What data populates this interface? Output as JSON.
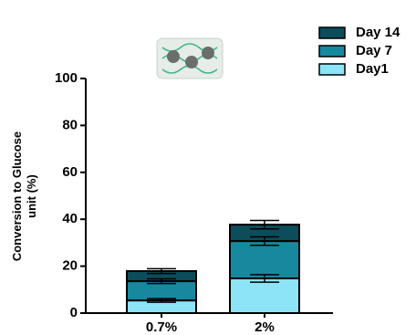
{
  "chart_data": {
    "type": "stacked-bar",
    "y_label": [
      "Conversion to Glucose",
      "unit (%)"
    ],
    "categories": [
      "0.7%",
      "2%"
    ],
    "series": [
      {
        "name": "Day1",
        "color": "#8de4f6",
        "values": [
          5.4,
          14.8
        ],
        "errors": [
          0.8,
          1.6
        ]
      },
      {
        "name": "Day 7",
        "color": "#16899f",
        "values": [
          8.2,
          15.9
        ],
        "errors": [
          1,
          1.8
        ]
      },
      {
        "name": "Day 14",
        "color": "#0c4d5b",
        "values": [
          4.3,
          7
        ],
        "errors": [
          1,
          1.8
        ]
      }
    ],
    "ylim": [
      0,
      100
    ],
    "yticks": [
      0,
      20,
      40,
      60,
      80,
      100
    ]
  }
}
